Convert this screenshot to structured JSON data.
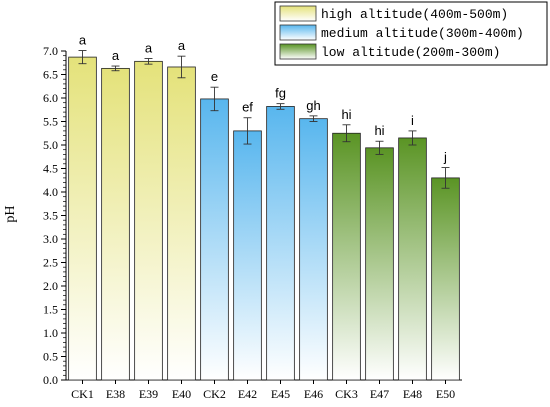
{
  "chart_data": {
    "type": "bar",
    "ylabel": "pH",
    "xlabel": "",
    "ylim": [
      0,
      7.0
    ],
    "yticks": [
      "0.0",
      "0.5",
      "1.0",
      "1.5",
      "2.0",
      "2.5",
      "3.0",
      "3.5",
      "4.0",
      "4.5",
      "5.0",
      "5.5",
      "6.0",
      "6.5",
      "7.0"
    ],
    "categories": [
      "CK1",
      "E38",
      "E39",
      "E40",
      "CK2",
      "E42",
      "E45",
      "E46",
      "CK3",
      "E47",
      "E48",
      "E50"
    ],
    "values": [
      6.87,
      6.63,
      6.78,
      6.66,
      5.98,
      5.3,
      5.82,
      5.56,
      5.25,
      4.94,
      5.15,
      4.3
    ],
    "errors": [
      0.14,
      0.05,
      0.06,
      0.23,
      0.25,
      0.28,
      0.06,
      0.06,
      0.18,
      0.14,
      0.15,
      0.22
    ],
    "significance": [
      "a",
      "a",
      "a",
      "a",
      "e",
      "ef",
      "fg",
      "gh",
      "hi",
      "hi",
      "i",
      "j"
    ],
    "groups": [
      0,
      0,
      0,
      0,
      1,
      1,
      1,
      1,
      2,
      2,
      2,
      2
    ],
    "legend_position": "top-right",
    "series": [
      {
        "name": "high altitude(400m-500m)",
        "color": "#e4e27a"
      },
      {
        "name": "medium altitude(300m-400m)",
        "color": "#58b6ee"
      },
      {
        "name": "low altitude(200m-300m)",
        "color": "#5a9424"
      }
    ]
  }
}
